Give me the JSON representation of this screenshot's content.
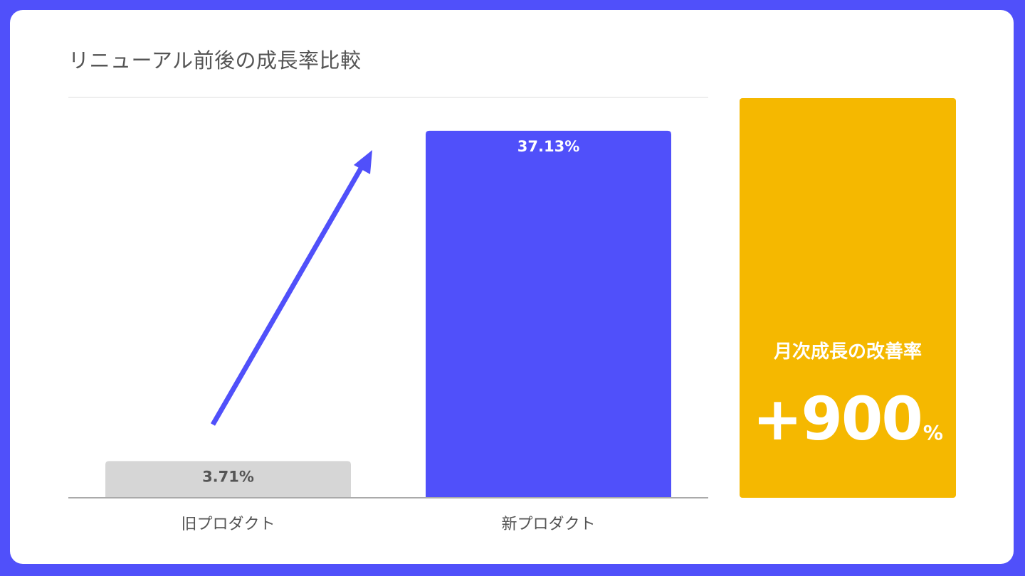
{
  "title": "リニューアル前後の成長率比較",
  "colors": {
    "frame": "#5050fa",
    "old_bar": "#d6d6d6",
    "new_bar": "#5050fa",
    "arrow": "#5050fa",
    "kpi": "#f5b800"
  },
  "chart_data": {
    "type": "bar",
    "title": "リニューアル前後の成長率比較",
    "categories": [
      "旧プロダクト",
      "新プロダクト"
    ],
    "values": [
      3.71,
      37.13
    ],
    "data_labels": [
      "3.71%",
      "37.13%"
    ],
    "unit": "%",
    "ylim": [
      0,
      40.5
    ],
    "grid": false,
    "annotation": "arrow-up-right"
  },
  "kpi": {
    "label": "月次成長の改善率",
    "value": "+900",
    "unit": "%"
  }
}
